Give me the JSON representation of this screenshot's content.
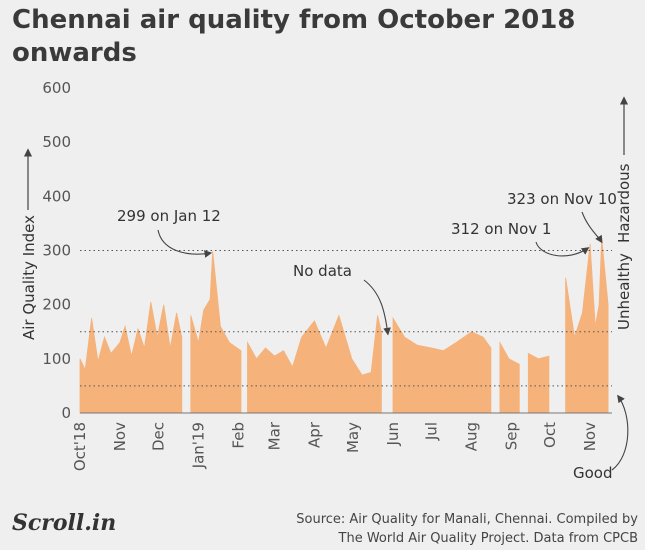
{
  "title": "Chennai air quality from October 2018 onwards",
  "brand": "Scroll.in",
  "source_line1": "Source: Air Quality for Manali, Chennai. Compiled by",
  "source_line2": "The World Air Quality Project. Data from CPCB",
  "colors": {
    "area": "#f5b27a",
    "background": "#efefef",
    "text": "#333333"
  },
  "chart_data": {
    "type": "area",
    "title": "Chennai air quality from October 2018 onwards",
    "ylabel": "Air Quality Index",
    "ylim": [
      0,
      600
    ],
    "yticks": [
      0,
      100,
      200,
      300,
      400,
      500,
      600
    ],
    "x_start": "2018-10-01",
    "x_end": "2019-11-18",
    "month_ticks": [
      {
        "label": "Oct'18",
        "date": "2018-10-01"
      },
      {
        "label": "Nov",
        "date": "2018-11-01"
      },
      {
        "label": "Dec",
        "date": "2018-12-01"
      },
      {
        "label": "Jan'19",
        "date": "2019-01-01"
      },
      {
        "label": "Feb",
        "date": "2019-02-01"
      },
      {
        "label": "Mar",
        "date": "2019-03-01"
      },
      {
        "label": "Apr",
        "date": "2019-04-01"
      },
      {
        "label": "May",
        "date": "2019-05-01"
      },
      {
        "label": "Jun",
        "date": "2019-06-01"
      },
      {
        "label": "Jul",
        "date": "2019-07-01"
      },
      {
        "label": "Aug",
        "date": "2019-08-01"
      },
      {
        "label": "Sep",
        "date": "2019-09-01"
      },
      {
        "label": "Oct",
        "date": "2019-10-01"
      },
      {
        "label": "Nov",
        "date": "2019-11-01"
      }
    ],
    "reference_lines": [
      50,
      150,
      300
    ],
    "category_labels": [
      "Good",
      "Unhealthy",
      "Hazardous"
    ],
    "gaps": [
      [
        "2018-12-20",
        "2018-12-25"
      ],
      [
        "2019-02-04",
        "2019-02-07"
      ],
      [
        "2019-05-24",
        "2019-05-31"
      ],
      [
        "2019-08-17",
        "2019-08-22"
      ],
      [
        "2019-09-08",
        "2019-09-13"
      ],
      [
        "2019-10-01",
        "2019-10-12"
      ]
    ],
    "series": [
      {
        "values": [
          [
            "2018-10-01",
            100
          ],
          [
            "2018-10-05",
            80
          ],
          [
            "2018-10-10",
            175
          ],
          [
            "2018-10-15",
            95
          ],
          [
            "2018-10-20",
            140
          ],
          [
            "2018-10-25",
            110
          ],
          [
            "2018-11-01",
            130
          ],
          [
            "2018-11-05",
            160
          ],
          [
            "2018-11-10",
            105
          ],
          [
            "2018-11-15",
            155
          ],
          [
            "2018-11-20",
            120
          ],
          [
            "2018-11-25",
            205
          ],
          [
            "2018-11-30",
            140
          ],
          [
            "2018-12-05",
            200
          ],
          [
            "2018-12-10",
            120
          ],
          [
            "2018-12-15",
            185
          ],
          [
            "2018-12-19",
            140
          ],
          [
            "2018-12-26",
            180
          ],
          [
            "2019-01-01",
            130
          ],
          [
            "2019-01-05",
            190
          ],
          [
            "2019-01-10",
            210
          ],
          [
            "2019-01-12",
            299
          ],
          [
            "2019-01-18",
            160
          ],
          [
            "2019-01-25",
            130
          ],
          [
            "2019-02-03",
            115
          ],
          [
            "2019-02-08",
            130
          ],
          [
            "2019-02-15",
            100
          ],
          [
            "2019-02-22",
            120
          ],
          [
            "2019-03-01",
            105
          ],
          [
            "2019-03-08",
            115
          ],
          [
            "2019-03-15",
            85
          ],
          [
            "2019-03-22",
            140
          ],
          [
            "2019-04-01",
            170
          ],
          [
            "2019-04-10",
            120
          ],
          [
            "2019-04-20",
            180
          ],
          [
            "2019-04-30",
            100
          ],
          [
            "2019-05-08",
            70
          ],
          [
            "2019-05-15",
            75
          ],
          [
            "2019-05-20",
            180
          ],
          [
            "2019-05-23",
            150
          ],
          [
            "2019-06-01",
            175
          ],
          [
            "2019-06-10",
            140
          ],
          [
            "2019-06-20",
            125
          ],
          [
            "2019-07-01",
            120
          ],
          [
            "2019-07-10",
            115
          ],
          [
            "2019-07-20",
            130
          ],
          [
            "2019-08-01",
            150
          ],
          [
            "2019-08-10",
            140
          ],
          [
            "2019-08-16",
            120
          ],
          [
            "2019-08-23",
            130
          ],
          [
            "2019-08-30",
            100
          ],
          [
            "2019-09-07",
            90
          ],
          [
            "2019-09-14",
            110
          ],
          [
            "2019-09-22",
            100
          ],
          [
            "2019-09-30",
            105
          ],
          [
            "2019-10-13",
            250
          ],
          [
            "2019-10-20",
            140
          ],
          [
            "2019-10-26",
            185
          ],
          [
            "2019-11-01",
            312
          ],
          [
            "2019-11-05",
            160
          ],
          [
            "2019-11-08",
            200
          ],
          [
            "2019-11-10",
            323
          ],
          [
            "2019-11-15",
            200
          ]
        ]
      }
    ],
    "annotations": [
      {
        "text": "299 on Jan 12",
        "date": "2019-01-12",
        "value": 299
      },
      {
        "text": "No data",
        "date": "2019-05-28",
        "value": 150
      },
      {
        "text": "312 on Nov 1",
        "date": "2019-11-01",
        "value": 312
      },
      {
        "text": "323 on Nov 10",
        "date": "2019-11-10",
        "value": 323
      }
    ]
  }
}
